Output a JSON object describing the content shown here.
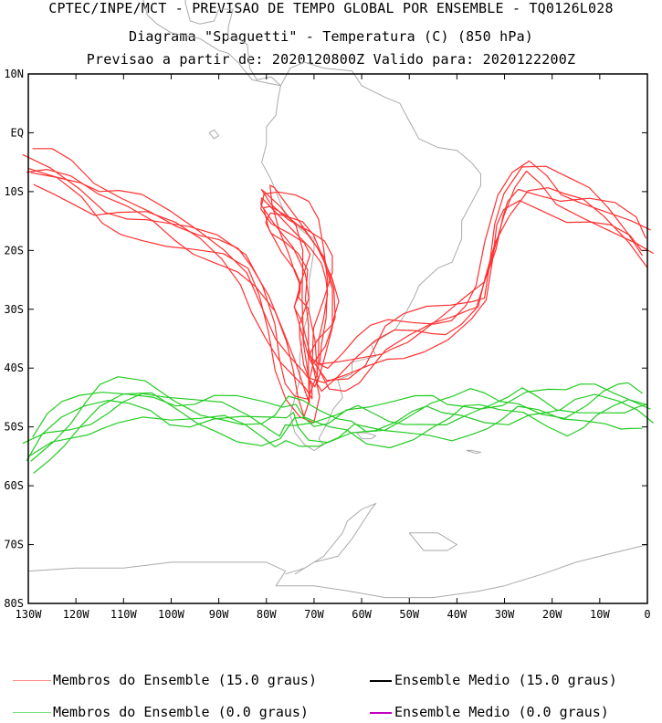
{
  "header": {
    "line1": "CPTEC/INPE/MCT - PREVISAO DE TEMPO GLOBAL POR ENSEMBLE - TQ0126L028",
    "line2": "Diagrama \"Spaguetti\" - Temperatura (C) (850 hPa)",
    "line3": "Previsao a partir de: 2020120800Z  Valido para: 2020122200Z"
  },
  "chart_data": {
    "type": "line",
    "map": "spaghetti",
    "xlim": [
      -130,
      0
    ],
    "ylim": [
      -80,
      10
    ],
    "x_ticks": [
      {
        "value": -130,
        "label": "130W"
      },
      {
        "value": -120,
        "label": "120W"
      },
      {
        "value": -110,
        "label": "110W"
      },
      {
        "value": -100,
        "label": "100W"
      },
      {
        "value": -90,
        "label": "90W"
      },
      {
        "value": -80,
        "label": "80W"
      },
      {
        "value": -70,
        "label": "70W"
      },
      {
        "value": -60,
        "label": "60W"
      },
      {
        "value": -50,
        "label": "50W"
      },
      {
        "value": -40,
        "label": "40W"
      },
      {
        "value": -30,
        "label": "30W"
      },
      {
        "value": -20,
        "label": "20W"
      },
      {
        "value": -10,
        "label": "10W"
      },
      {
        "value": 0,
        "label": "0"
      }
    ],
    "y_ticks": [
      {
        "value": 10,
        "label": "10N"
      },
      {
        "value": 0,
        "label": "EQ"
      },
      {
        "value": -10,
        "label": "10S"
      },
      {
        "value": -20,
        "label": "20S"
      },
      {
        "value": -30,
        "label": "30S"
      },
      {
        "value": -40,
        "label": "40S"
      },
      {
        "value": -50,
        "label": "50S"
      },
      {
        "value": -60,
        "label": "60S"
      },
      {
        "value": -70,
        "label": "70S"
      },
      {
        "value": -80,
        "label": "80S"
      }
    ],
    "series": [
      {
        "name": "Membros do Ensemble (15.0 graus)",
        "color": "#ff3030",
        "members": 6,
        "path": [
          [
            -130,
            -6
          ],
          [
            -125,
            -7
          ],
          [
            -120,
            -9
          ],
          [
            -115,
            -12
          ],
          [
            -110,
            -13
          ],
          [
            -105,
            -14
          ],
          [
            -100,
            -16
          ],
          [
            -95,
            -18
          ],
          [
            -90,
            -20
          ],
          [
            -85,
            -23
          ],
          [
            -82,
            -27
          ],
          [
            -79,
            -32
          ],
          [
            -77,
            -37
          ],
          [
            -75,
            -41
          ],
          [
            -73,
            -44
          ],
          [
            -71,
            -46
          ],
          [
            -70,
            -43
          ],
          [
            -71,
            -38
          ],
          [
            -72,
            -32
          ],
          [
            -73,
            -29
          ],
          [
            -72,
            -25
          ],
          [
            -73,
            -22
          ],
          [
            -75,
            -19
          ],
          [
            -78,
            -16
          ],
          [
            -80,
            -13
          ],
          [
            -80,
            -11
          ],
          [
            -78,
            -12
          ],
          [
            -75,
            -14
          ],
          [
            -72,
            -16
          ],
          [
            -69,
            -19
          ],
          [
            -67,
            -23
          ],
          [
            -66,
            -27
          ],
          [
            -67,
            -32
          ],
          [
            -69,
            -36
          ],
          [
            -70,
            -40
          ],
          [
            -68,
            -42
          ],
          [
            -64,
            -41
          ],
          [
            -60,
            -39
          ],
          [
            -57,
            -37
          ],
          [
            -54,
            -35
          ],
          [
            -50,
            -34
          ],
          [
            -46,
            -33
          ],
          [
            -42,
            -32
          ],
          [
            -38,
            -30
          ],
          [
            -35,
            -28
          ],
          [
            -33,
            -22
          ],
          [
            -31,
            -15
          ],
          [
            -29,
            -11
          ],
          [
            -26,
            -8
          ],
          [
            -22,
            -9
          ],
          [
            -18,
            -11
          ],
          [
            -13,
            -12
          ],
          [
            -8,
            -14
          ],
          [
            -3,
            -17
          ],
          [
            0,
            -20
          ]
        ]
      },
      {
        "name": "Membros do Ensemble (0.0 graus)",
        "color": "#22cc22",
        "members": 6,
        "path": [
          [
            -130,
            -55
          ],
          [
            -126,
            -52
          ],
          [
            -122,
            -50
          ],
          [
            -118,
            -48
          ],
          [
            -114,
            -46
          ],
          [
            -110,
            -45
          ],
          [
            -105,
            -45
          ],
          [
            -100,
            -47
          ],
          [
            -95,
            -48
          ],
          [
            -90,
            -48
          ],
          [
            -85,
            -49
          ],
          [
            -80,
            -50
          ],
          [
            -77,
            -50
          ],
          [
            -75,
            -48
          ],
          [
            -73,
            -49
          ],
          [
            -70,
            -50
          ],
          [
            -66,
            -50
          ],
          [
            -62,
            -49
          ],
          [
            -58,
            -50
          ],
          [
            -54,
            -50
          ],
          [
            -50,
            -49
          ],
          [
            -46,
            -48
          ],
          [
            -42,
            -48
          ],
          [
            -38,
            -47
          ],
          [
            -34,
            -47
          ],
          [
            -30,
            -47
          ],
          [
            -26,
            -46
          ],
          [
            -22,
            -47
          ],
          [
            -18,
            -48
          ],
          [
            -14,
            -47
          ],
          [
            -10,
            -46
          ],
          [
            -6,
            -46
          ],
          [
            -3,
            -46
          ],
          [
            0,
            -47
          ]
        ]
      }
    ]
  },
  "legend": [
    {
      "label": "Membros do Ensemble (15.0 graus)",
      "color": "#ff8c8c"
    },
    {
      "label": "Ensemble Medio (15.0 graus)",
      "color": "#000000"
    },
    {
      "label": "Membros do Ensemble (0.0 graus)",
      "color": "#7fe07f"
    },
    {
      "label": "Ensemble Medio (0.0 graus)",
      "color": "#c000c0"
    }
  ],
  "map_colors": {
    "coast": "#aaaaaa",
    "frame": "#000000"
  }
}
